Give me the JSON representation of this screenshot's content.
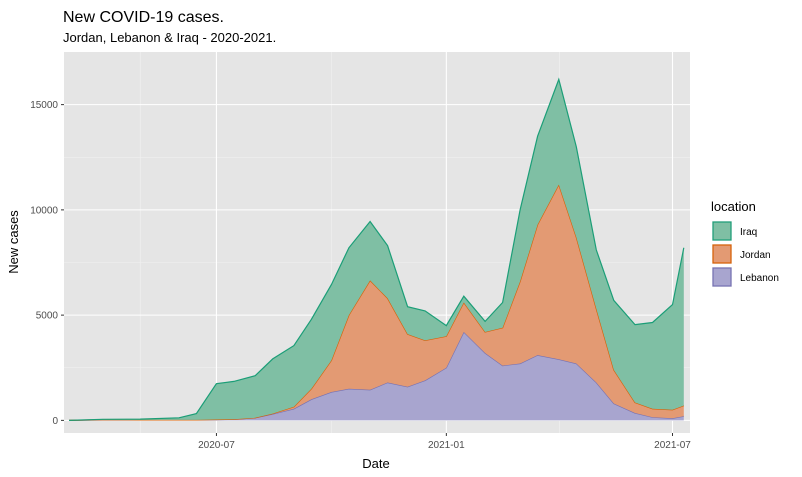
{
  "chart_data": {
    "type": "area",
    "title": "New COVID-19 cases.",
    "subtitle": "Jordan, Lebanon & Iraq - 2020-2021.",
    "xlabel": "Date",
    "ylabel": "New cases",
    "xlim": [
      "2020-03-01",
      "2021-07-15"
    ],
    "ylim": [
      -600,
      17500
    ],
    "x_ticks": [
      "2020-07-01",
      "2021-01-01",
      "2021-07-01"
    ],
    "x_tick_labels": [
      "2020-07",
      "2021-01",
      "2021-07"
    ],
    "y_ticks": [
      0,
      5000,
      10000,
      15000
    ],
    "y_tick_labels": [
      "0",
      "5000",
      "10000",
      "15000"
    ],
    "stacked": true,
    "grid": true,
    "legend": {
      "title": "location",
      "placement": "right"
    },
    "x": [
      "2020-03-05",
      "2020-04-01",
      "2020-05-01",
      "2020-06-01",
      "2020-06-15",
      "2020-07-01",
      "2020-07-15",
      "2020-08-01",
      "2020-08-15",
      "2020-09-01",
      "2020-09-15",
      "2020-10-01",
      "2020-10-15",
      "2020-11-01",
      "2020-11-15",
      "2020-12-01",
      "2020-12-15",
      "2021-01-01",
      "2021-01-15",
      "2021-02-01",
      "2021-02-15",
      "2021-03-01",
      "2021-03-15",
      "2021-04-01",
      "2021-04-15",
      "2021-05-01",
      "2021-05-15",
      "2021-06-01",
      "2021-06-15",
      "2021-07-01",
      "2021-07-10"
    ],
    "series": [
      {
        "name": "Lebanon",
        "color": "#7570b3",
        "fill": "#a8a5cf",
        "values": [
          0,
          20,
          20,
          20,
          20,
          30,
          50,
          120,
          300,
          550,
          1000,
          1350,
          1500,
          1450,
          1800,
          1600,
          1900,
          2500,
          4200,
          3200,
          2600,
          2700,
          3100,
          2900,
          2700,
          1800,
          800,
          350,
          150,
          100,
          200
        ]
      },
      {
        "name": "Jordan",
        "color": "#d95f02",
        "fill": "#e39a73",
        "values": [
          0,
          10,
          0,
          0,
          0,
          10,
          0,
          0,
          20,
          100,
          500,
          1500,
          3500,
          5200,
          4000,
          2500,
          1900,
          1500,
          1400,
          1000,
          1800,
          3900,
          6200,
          8300,
          6000,
          3500,
          1600,
          500,
          400,
          400,
          500
        ]
      },
      {
        "name": "Iraq",
        "color": "#1b9e77",
        "fill": "#7fbfa4",
        "values": [
          0,
          20,
          40,
          100,
          300,
          1700,
          1800,
          2000,
          2600,
          2900,
          3300,
          3600,
          3200,
          2800,
          2500,
          1300,
          1400,
          500,
          300,
          500,
          1200,
          3400,
          4200,
          5000,
          4300,
          2800,
          3300,
          3700,
          4100,
          5000,
          7500
        ]
      }
    ]
  }
}
